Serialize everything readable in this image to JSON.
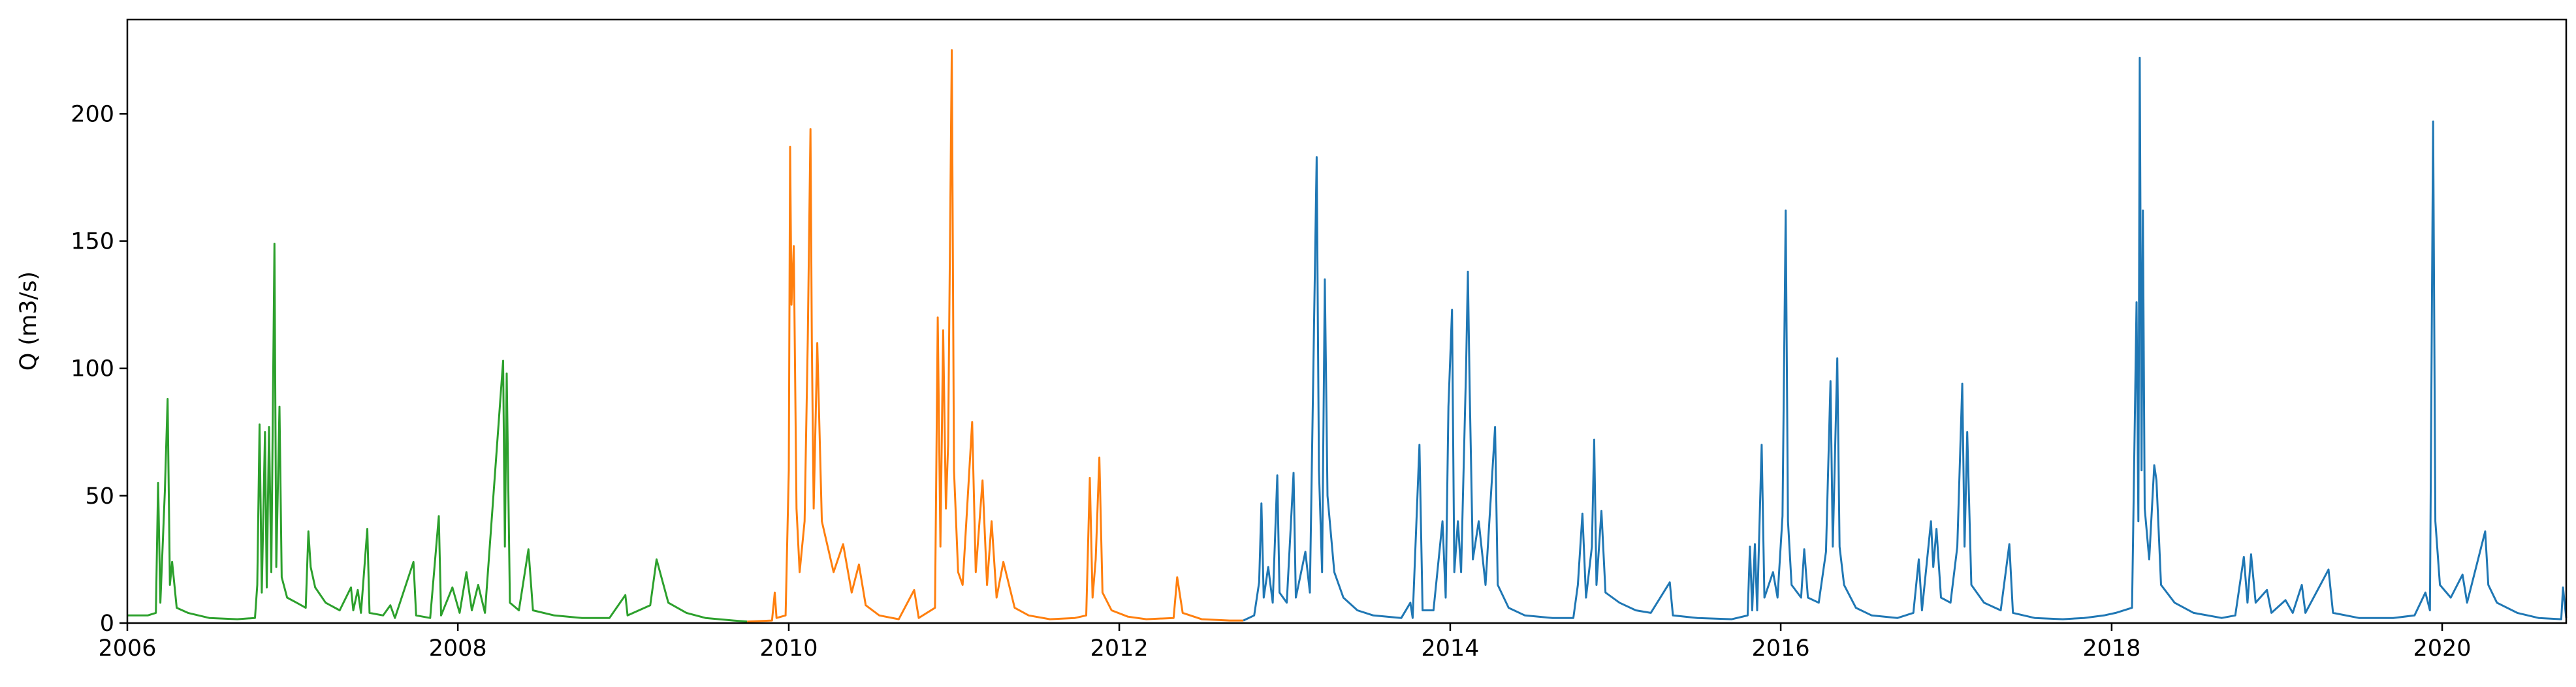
{
  "chart_data": {
    "type": "line",
    "title": "",
    "xlabel": "",
    "ylabel": "Q (m3/s)",
    "xlim": [
      "2006-01-01",
      "2020-10-01"
    ],
    "ylim": [
      0,
      237
    ],
    "x_ticks": [
      "2006",
      "2008",
      "2010",
      "2012",
      "2014",
      "2016",
      "2018",
      "2020"
    ],
    "y_ticks": [
      "0",
      "50",
      "100",
      "150",
      "200"
    ],
    "grid": false,
    "legend": "none",
    "series": [
      {
        "color": "#2ca02c",
        "points": [
          [
            "2006-01-01",
            3
          ],
          [
            "2006-02-15",
            3
          ],
          [
            "2006-03-05",
            4
          ],
          [
            "2006-03-10",
            55
          ],
          [
            "2006-03-15",
            8
          ],
          [
            "2006-03-25",
            52
          ],
          [
            "2006-03-31",
            88
          ],
          [
            "2006-04-05",
            15
          ],
          [
            "2006-04-10",
            24
          ],
          [
            "2006-04-20",
            6
          ],
          [
            "2006-05-15",
            4
          ],
          [
            "2006-07-01",
            2
          ],
          [
            "2006-09-01",
            1.5
          ],
          [
            "2006-10-10",
            2
          ],
          [
            "2006-10-15",
            15
          ],
          [
            "2006-10-20",
            78
          ],
          [
            "2006-10-25",
            12
          ],
          [
            "2006-11-01",
            75
          ],
          [
            "2006-11-05",
            14
          ],
          [
            "2006-11-10",
            77
          ],
          [
            "2006-11-15",
            20
          ],
          [
            "2006-11-22",
            149
          ],
          [
            "2006-11-26",
            22
          ],
          [
            "2006-12-03",
            85
          ],
          [
            "2006-12-08",
            18
          ],
          [
            "2006-12-20",
            10
          ],
          [
            "2007-01-10",
            8
          ],
          [
            "2007-01-30",
            6
          ],
          [
            "2007-02-05",
            36
          ],
          [
            "2007-02-10",
            22
          ],
          [
            "2007-02-20",
            14
          ],
          [
            "2007-03-15",
            8
          ],
          [
            "2007-04-15",
            5
          ],
          [
            "2007-05-10",
            14
          ],
          [
            "2007-05-15",
            5
          ],
          [
            "2007-05-25",
            13
          ],
          [
            "2007-06-01",
            4
          ],
          [
            "2007-06-15",
            37
          ],
          [
            "2007-06-20",
            4
          ],
          [
            "2007-07-20",
            3
          ],
          [
            "2007-08-05",
            7
          ],
          [
            "2007-08-15",
            2
          ],
          [
            "2007-09-25",
            24
          ],
          [
            "2007-10-01",
            3
          ],
          [
            "2007-11-01",
            2
          ],
          [
            "2007-11-20",
            42
          ],
          [
            "2007-11-25",
            3
          ],
          [
            "2007-12-20",
            14
          ],
          [
            "2008-01-05",
            4
          ],
          [
            "2008-01-20",
            20
          ],
          [
            "2008-02-01",
            5
          ],
          [
            "2008-02-15",
            15
          ],
          [
            "2008-03-01",
            4
          ],
          [
            "2008-04-10",
            103
          ],
          [
            "2008-04-14",
            30
          ],
          [
            "2008-04-18",
            98
          ],
          [
            "2008-04-25",
            8
          ],
          [
            "2008-05-15",
            5
          ],
          [
            "2008-06-05",
            29
          ],
          [
            "2008-06-15",
            5
          ],
          [
            "2008-08-01",
            3
          ],
          [
            "2008-10-01",
            2
          ],
          [
            "2008-12-01",
            2
          ],
          [
            "2009-01-05",
            11
          ],
          [
            "2009-01-10",
            3
          ],
          [
            "2009-03-01",
            7
          ],
          [
            "2009-03-15",
            25
          ],
          [
            "2009-04-10",
            8
          ],
          [
            "2009-05-20",
            4
          ],
          [
            "2009-07-01",
            2
          ],
          [
            "2009-09-01",
            1
          ],
          [
            "2009-10-01",
            0.6
          ]
        ]
      },
      {
        "color": "#ff7f0e",
        "points": [
          [
            "2009-10-01",
            0.6
          ],
          [
            "2009-11-25",
            1
          ],
          [
            "2009-12-01",
            12
          ],
          [
            "2009-12-05",
            2
          ],
          [
            "2009-12-25",
            3
          ],
          [
            "2010-01-01",
            60
          ],
          [
            "2010-01-04",
            187
          ],
          [
            "2010-01-07",
            125
          ],
          [
            "2010-01-12",
            148
          ],
          [
            "2010-01-18",
            45
          ],
          [
            "2010-01-25",
            20
          ],
          [
            "2010-02-05",
            40
          ],
          [
            "2010-02-12",
            112
          ],
          [
            "2010-02-18",
            194
          ],
          [
            "2010-02-21",
            110
          ],
          [
            "2010-02-25",
            45
          ],
          [
            "2010-03-05",
            110
          ],
          [
            "2010-03-15",
            40
          ],
          [
            "2010-04-10",
            20
          ],
          [
            "2010-05-01",
            31
          ],
          [
            "2010-05-20",
            12
          ],
          [
            "2010-06-05",
            23
          ],
          [
            "2010-06-20",
            7
          ],
          [
            "2010-07-20",
            3
          ],
          [
            "2010-09-01",
            1.5
          ],
          [
            "2010-10-05",
            13
          ],
          [
            "2010-10-15",
            2
          ],
          [
            "2010-11-20",
            6
          ],
          [
            "2010-11-26",
            120
          ],
          [
            "2010-12-02",
            30
          ],
          [
            "2010-12-08",
            115
          ],
          [
            "2010-12-14",
            45
          ],
          [
            "2010-12-19",
            70
          ],
          [
            "2010-12-27",
            225
          ],
          [
            "2011-01-01",
            60
          ],
          [
            "2011-01-10",
            20
          ],
          [
            "2011-01-20",
            15
          ],
          [
            "2011-02-10",
            79
          ],
          [
            "2011-02-18",
            20
          ],
          [
            "2011-03-05",
            56
          ],
          [
            "2011-03-15",
            15
          ],
          [
            "2011-03-25",
            40
          ],
          [
            "2011-04-05",
            10
          ],
          [
            "2011-04-20",
            24
          ],
          [
            "2011-05-15",
            6
          ],
          [
            "2011-06-15",
            3
          ],
          [
            "2011-08-01",
            1.5
          ],
          [
            "2011-09-25",
            2
          ],
          [
            "2011-10-20",
            3
          ],
          [
            "2011-10-28",
            57
          ],
          [
            "2011-11-03",
            10
          ],
          [
            "2011-11-10",
            25
          ],
          [
            "2011-11-18",
            65
          ],
          [
            "2011-11-25",
            12
          ],
          [
            "2011-12-15",
            5
          ],
          [
            "2012-01-20",
            2.5
          ],
          [
            "2012-03-01",
            1.5
          ],
          [
            "2012-04-30",
            2
          ],
          [
            "2012-05-08",
            18
          ],
          [
            "2012-05-20",
            4
          ],
          [
            "2012-07-01",
            1.5
          ],
          [
            "2012-09-01",
            1
          ],
          [
            "2012-10-01",
            1
          ]
        ]
      },
      {
        "color": "#1f77b4",
        "points": [
          [
            "2012-10-01",
            1
          ],
          [
            "2012-10-25",
            3
          ],
          [
            "2012-11-05",
            16
          ],
          [
            "2012-11-10",
            47
          ],
          [
            "2012-11-15",
            10
          ],
          [
            "2012-11-25",
            22
          ],
          [
            "2012-12-05",
            8
          ],
          [
            "2012-12-15",
            58
          ],
          [
            "2012-12-20",
            12
          ],
          [
            "2013-01-05",
            8
          ],
          [
            "2013-01-20",
            59
          ],
          [
            "2013-01-25",
            10
          ],
          [
            "2013-02-15",
            28
          ],
          [
            "2013-02-25",
            12
          ],
          [
            "2013-03-12",
            183
          ],
          [
            "2013-03-17",
            60
          ],
          [
            "2013-03-24",
            20
          ],
          [
            "2013-03-30",
            135
          ],
          [
            "2013-04-05",
            50
          ],
          [
            "2013-04-20",
            20
          ],
          [
            "2013-05-10",
            10
          ],
          [
            "2013-06-10",
            5
          ],
          [
            "2013-07-15",
            3
          ],
          [
            "2013-09-15",
            2
          ],
          [
            "2013-10-05",
            8
          ],
          [
            "2013-10-10",
            2
          ],
          [
            "2013-10-25",
            70
          ],
          [
            "2013-11-01",
            5
          ],
          [
            "2013-11-25",
            5
          ],
          [
            "2013-12-15",
            40
          ],
          [
            "2013-12-22",
            10
          ],
          [
            "2013-12-28",
            85
          ],
          [
            "2014-01-05",
            123
          ],
          [
            "2014-01-10",
            20
          ],
          [
            "2014-01-18",
            40
          ],
          [
            "2014-01-25",
            20
          ],
          [
            "2014-02-05",
            100
          ],
          [
            "2014-02-09",
            138
          ],
          [
            "2014-02-13",
            92
          ],
          [
            "2014-02-20",
            25
          ],
          [
            "2014-03-05",
            40
          ],
          [
            "2014-03-20",
            15
          ],
          [
            "2014-04-10",
            77
          ],
          [
            "2014-04-16",
            15
          ],
          [
            "2014-05-10",
            6
          ],
          [
            "2014-06-15",
            3
          ],
          [
            "2014-08-15",
            2
          ],
          [
            "2014-09-30",
            2
          ],
          [
            "2014-10-10",
            15
          ],
          [
            "2014-10-20",
            43
          ],
          [
            "2014-10-28",
            10
          ],
          [
            "2014-11-10",
            30
          ],
          [
            "2014-11-15",
            72
          ],
          [
            "2014-11-20",
            15
          ],
          [
            "2014-12-01",
            44
          ],
          [
            "2014-12-10",
            12
          ],
          [
            "2015-01-10",
            8
          ],
          [
            "2015-02-15",
            5
          ],
          [
            "2015-03-20",
            4
          ],
          [
            "2015-05-01",
            16
          ],
          [
            "2015-05-08",
            3
          ],
          [
            "2015-07-01",
            2
          ],
          [
            "2015-09-15",
            1.5
          ],
          [
            "2015-10-20",
            3
          ],
          [
            "2015-10-25",
            30
          ],
          [
            "2015-10-30",
            5
          ],
          [
            "2015-11-05",
            31
          ],
          [
            "2015-11-10",
            5
          ],
          [
            "2015-11-20",
            70
          ],
          [
            "2015-11-26",
            10
          ],
          [
            "2015-12-15",
            20
          ],
          [
            "2015-12-25",
            10
          ],
          [
            "2016-01-05",
            42
          ],
          [
            "2016-01-12",
            162
          ],
          [
            "2016-01-17",
            40
          ],
          [
            "2016-01-25",
            15
          ],
          [
            "2016-02-15",
            10
          ],
          [
            "2016-02-22",
            29
          ],
          [
            "2016-03-01",
            10
          ],
          [
            "2016-03-25",
            8
          ],
          [
            "2016-04-10",
            28
          ],
          [
            "2016-04-20",
            95
          ],
          [
            "2016-04-25",
            30
          ],
          [
            "2016-05-05",
            104
          ],
          [
            "2016-05-10",
            30
          ],
          [
            "2016-05-20",
            15
          ],
          [
            "2016-06-15",
            6
          ],
          [
            "2016-07-20",
            3
          ],
          [
            "2016-09-15",
            2
          ],
          [
            "2016-10-20",
            4
          ],
          [
            "2016-11-01",
            25
          ],
          [
            "2016-11-08",
            5
          ],
          [
            "2016-11-28",
            40
          ],
          [
            "2016-12-03",
            22
          ],
          [
            "2016-12-10",
            37
          ],
          [
            "2016-12-20",
            10
          ],
          [
            "2017-01-10",
            8
          ],
          [
            "2017-01-25",
            30
          ],
          [
            "2017-02-05",
            94
          ],
          [
            "2017-02-10",
            30
          ],
          [
            "2017-02-16",
            75
          ],
          [
            "2017-02-25",
            15
          ],
          [
            "2017-03-25",
            8
          ],
          [
            "2017-05-01",
            5
          ],
          [
            "2017-05-20",
            31
          ],
          [
            "2017-05-28",
            4
          ],
          [
            "2017-07-15",
            2
          ],
          [
            "2017-09-15",
            1.5
          ],
          [
            "2017-11-01",
            2
          ],
          [
            "2017-12-15",
            3
          ],
          [
            "2018-01-10",
            4
          ],
          [
            "2018-02-15",
            6
          ],
          [
            "2018-02-25",
            126
          ],
          [
            "2018-03-01",
            40
          ],
          [
            "2018-03-04",
            222
          ],
          [
            "2018-03-08",
            60
          ],
          [
            "2018-03-11",
            162
          ],
          [
            "2018-03-15",
            45
          ],
          [
            "2018-03-25",
            25
          ],
          [
            "2018-04-05",
            62
          ],
          [
            "2018-04-10",
            56
          ],
          [
            "2018-04-20",
            15
          ],
          [
            "2018-05-20",
            8
          ],
          [
            "2018-07-01",
            4
          ],
          [
            "2018-09-01",
            2
          ],
          [
            "2018-10-01",
            3
          ],
          [
            "2018-10-20",
            26
          ],
          [
            "2018-10-28",
            8
          ],
          [
            "2018-11-05",
            27
          ],
          [
            "2018-11-15",
            8
          ],
          [
            "2018-12-10",
            13
          ],
          [
            "2018-12-20",
            4
          ],
          [
            "2019-01-20",
            9
          ],
          [
            "2019-02-05",
            4
          ],
          [
            "2019-02-25",
            15
          ],
          [
            "2019-03-05",
            4
          ],
          [
            "2019-04-25",
            21
          ],
          [
            "2019-05-05",
            4
          ],
          [
            "2019-07-01",
            2
          ],
          [
            "2019-09-15",
            2
          ],
          [
            "2019-11-01",
            3
          ],
          [
            "2019-11-25",
            12
          ],
          [
            "2019-12-05",
            5
          ],
          [
            "2019-12-12",
            197
          ],
          [
            "2019-12-17",
            40
          ],
          [
            "2019-12-27",
            15
          ],
          [
            "2020-01-20",
            10
          ],
          [
            "2020-02-15",
            19
          ],
          [
            "2020-02-25",
            8
          ],
          [
            "2020-04-05",
            36
          ],
          [
            "2020-04-12",
            15
          ],
          [
            "2020-05-01",
            8
          ],
          [
            "2020-06-15",
            4
          ],
          [
            "2020-08-01",
            2
          ],
          [
            "2020-09-20",
            1.5
          ],
          [
            "2020-09-24",
            14
          ],
          [
            "2020-10-01",
            2
          ]
        ]
      }
    ]
  }
}
